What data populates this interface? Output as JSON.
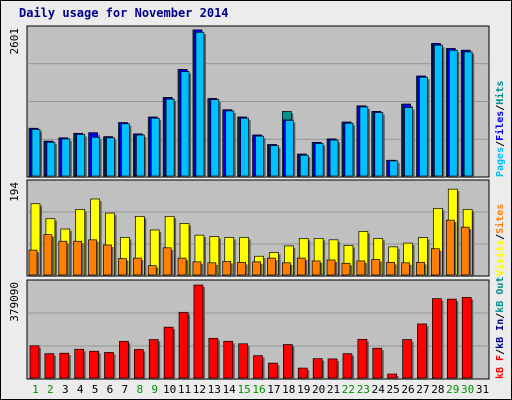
{
  "title": "Daily usage for November 2014",
  "colors": {
    "frame_bg": "#ececec",
    "panel_bg": "#c0c0c0",
    "grid": "#888888",
    "pages": "#00c0ff",
    "files": "#0000ff",
    "hits": "#009090",
    "visits": "#ffff00",
    "sites": "#ff8000",
    "kb_in": "#00008b",
    "kb_out": "#009090",
    "kb_f": "#ff0000",
    "weekend_label": "#009000",
    "weekday_label": "#000000",
    "title": "#00008b"
  },
  "chart_data": [
    {
      "type": "bar",
      "panel": "hits-files-pages",
      "max_label": "2601",
      "right_legend": [
        "Pages",
        "/",
        "Files",
        "/",
        "Hits"
      ],
      "ylim": [
        0,
        2601
      ],
      "x": [
        1,
        2,
        3,
        4,
        5,
        6,
        7,
        8,
        9,
        10,
        11,
        12,
        13,
        14,
        15,
        16,
        17,
        18,
        19,
        20,
        21,
        22,
        23,
        24,
        25,
        26,
        27,
        28,
        29,
        30,
        31
      ],
      "series": [
        {
          "name": "Hits",
          "values": [
            850,
            620,
            680,
            760,
            770,
            700,
            950,
            750,
            1050,
            1400,
            1900,
            2601,
            1380,
            1180,
            1050,
            730,
            560,
            1150,
            390,
            600,
            660,
            960,
            1250,
            1150,
            280,
            1280,
            1780,
            2360,
            2270,
            2240,
            0
          ]
        },
        {
          "name": "Files",
          "values": [
            850,
            620,
            680,
            760,
            770,
            700,
            950,
            750,
            1050,
            1400,
            1900,
            2601,
            1380,
            1180,
            1050,
            730,
            560,
            1000,
            390,
            600,
            660,
            960,
            1250,
            1150,
            280,
            1280,
            1780,
            2360,
            2270,
            2240,
            0
          ]
        },
        {
          "name": "Pages",
          "values": [
            830,
            600,
            660,
            740,
            690,
            680,
            930,
            730,
            1030,
            1370,
            1860,
            2560,
            1360,
            1160,
            1030,
            710,
            540,
            990,
            370,
            580,
            640,
            940,
            1230,
            1130,
            270,
            1220,
            1760,
            2330,
            2240,
            2210,
            0
          ]
        }
      ]
    },
    {
      "type": "bar",
      "panel": "visits-sites",
      "max_label": "194",
      "right_legend": [
        "Visits",
        "/",
        "Sites"
      ],
      "ylim": [
        0,
        194
      ],
      "x": [
        1,
        2,
        3,
        4,
        5,
        6,
        7,
        8,
        9,
        10,
        11,
        12,
        13,
        14,
        15,
        16,
        17,
        18,
        19,
        20,
        21,
        22,
        23,
        24,
        25,
        26,
        27,
        28,
        29,
        30,
        31
      ],
      "series": [
        {
          "name": "Visits",
          "values": [
            152,
            120,
            98,
            140,
            162,
            132,
            80,
            125,
            96,
            125,
            110,
            85,
            82,
            80,
            80,
            40,
            48,
            62,
            78,
            78,
            75,
            63,
            93,
            78,
            60,
            68,
            80,
            142,
            183,
            140,
            0
          ]
        },
        {
          "name": "Sites",
          "values": [
            53,
            86,
            72,
            72,
            75,
            64,
            35,
            36,
            20,
            58,
            36,
            28,
            26,
            29,
            27,
            28,
            36,
            26,
            36,
            30,
            32,
            25,
            30,
            33,
            27,
            26,
            27,
            56,
            117,
            102,
            0
          ]
        }
      ]
    },
    {
      "type": "bar",
      "panel": "kbytes",
      "max_label": "379090",
      "right_legend": [
        "KBytes",
        "/",
        "kB In",
        "/",
        "kB Out"
      ],
      "ylim": [
        0,
        379090
      ],
      "x": [
        1,
        2,
        3,
        4,
        5,
        6,
        7,
        8,
        9,
        10,
        11,
        12,
        13,
        14,
        15,
        16,
        17,
        18,
        19,
        20,
        21,
        22,
        23,
        24,
        25,
        26,
        27,
        28,
        29,
        30,
        31
      ],
      "series": [
        {
          "name": "KBytes",
          "values": [
            130000,
            98000,
            100000,
            116000,
            108000,
            103000,
            148000,
            115000,
            155000,
            205000,
            265000,
            375000,
            160000,
            148000,
            138000,
            90000,
            60000,
            135000,
            40000,
            78000,
            77000,
            98000,
            156000,
            120000,
            16000,
            155000,
            218000,
            320000,
            318000,
            325000,
            0
          ]
        },
        {
          "name": "kB In",
          "values": [
            0,
            0,
            0,
            0,
            0,
            0,
            0,
            0,
            0,
            0,
            0,
            0,
            0,
            0,
            0,
            0,
            0,
            0,
            0,
            0,
            0,
            0,
            0,
            0,
            0,
            0,
            0,
            0,
            0,
            0,
            0
          ]
        },
        {
          "name": "kB Out",
          "values": [
            0,
            0,
            0,
            0,
            0,
            0,
            0,
            0,
            0,
            0,
            0,
            0,
            0,
            0,
            0,
            0,
            0,
            0,
            0,
            0,
            0,
            0,
            0,
            0,
            0,
            0,
            0,
            0,
            0,
            0,
            0
          ]
        }
      ]
    }
  ],
  "x_labels": [
    "1",
    "2",
    "3",
    "4",
    "5",
    "6",
    "7",
    "8",
    "9",
    "10",
    "11",
    "12",
    "13",
    "14",
    "15",
    "16",
    "17",
    "18",
    "19",
    "20",
    "21",
    "22",
    "23",
    "24",
    "25",
    "26",
    "27",
    "28",
    "29",
    "30",
    "31"
  ],
  "weekend_days": [
    1,
    2,
    8,
    9,
    15,
    16,
    22,
    23,
    29,
    30
  ]
}
